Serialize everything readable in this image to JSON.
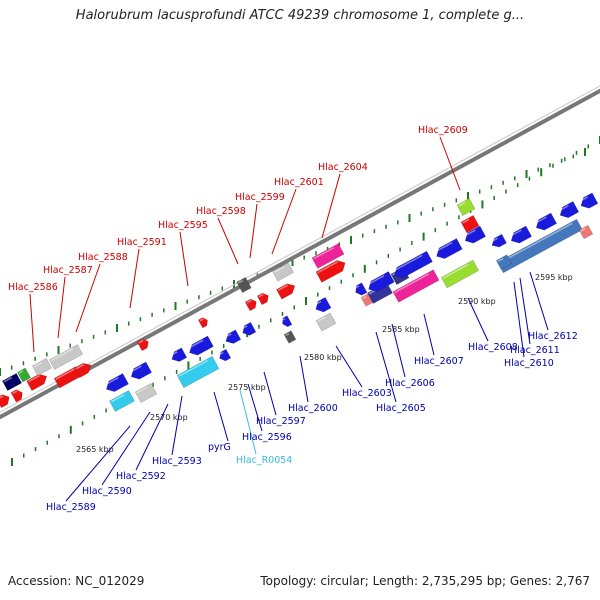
{
  "title": "Halorubrum lacusprofundi ATCC 49239 chromosome 1, complete g...",
  "footer": {
    "accession": "Accession: NC_012029",
    "summary": "Topology: circular; Length: 2,735,295 bp; Genes: 2,767"
  },
  "colors": {
    "top_strand_label": "#cc0000",
    "bottom_strand_label": "#0000aa",
    "rna_label": "#33bbdd",
    "backbone": "#888888",
    "tick": "#227722"
  },
  "kbp_markers": [
    "2565 kbp",
    "2570 kbp",
    "2575 kbp",
    "2580 kbp",
    "2585 kbp",
    "2590 kbp",
    "2595 kbp"
  ],
  "top_labels": [
    "Hlac_2586",
    "Hlac_2587",
    "Hlac_2588",
    "Hlac_2591",
    "Hlac_2595",
    "Hlac_2598",
    "Hlac_2599",
    "Hlac_2601",
    "Hlac_2604",
    "Hlac_2609"
  ],
  "bottom_labels": [
    "Hlac_2589",
    "Hlac_2590",
    "Hlac_2592",
    "Hlac_2593",
    "pyrG",
    "Hlac_R0054",
    "Hlac_2596",
    "Hlac_2597",
    "Hlac_2600",
    "Hlac_2603",
    "Hlac_2605",
    "Hlac_2606",
    "Hlac_2607",
    "Hlac_2608",
    "Hlac_2610",
    "Hlac_2611",
    "Hlac_2612"
  ]
}
